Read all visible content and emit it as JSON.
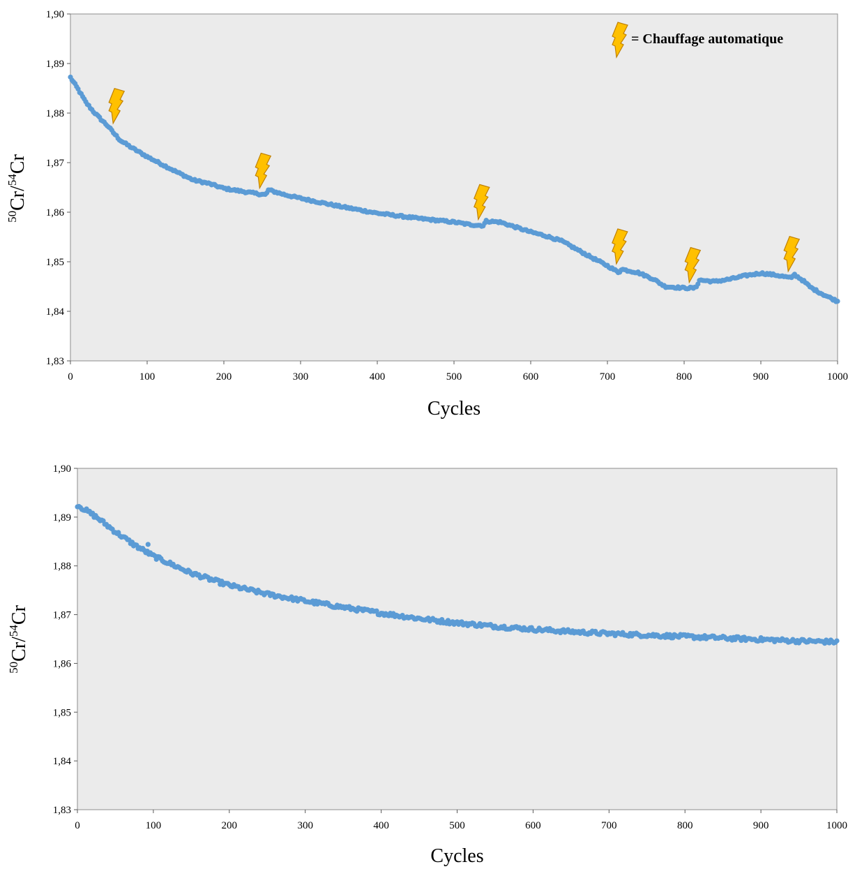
{
  "colors": {
    "plot_background": "#ebebeb",
    "marker": "#5b9bd5",
    "bolt_fill": "#ffc000",
    "bolt_stroke": "#c08000"
  },
  "legend": {
    "icon": "lightning-bolt-icon",
    "text": "= Chauffage automatique"
  },
  "chart_data": [
    {
      "type": "scatter",
      "xlabel": "Cycles",
      "ylabel": "50Cr/54Cr",
      "ylabel_parts": [
        "50",
        "Cr/",
        "54",
        "Cr"
      ],
      "xlim": [
        0,
        1000
      ],
      "ylim": [
        1.83,
        1.9
      ],
      "xticks": [
        0,
        100,
        200,
        300,
        400,
        500,
        600,
        700,
        800,
        900,
        1000
      ],
      "yticks": [
        "1,83",
        "1,84",
        "1,85",
        "1,86",
        "1,87",
        "1,88",
        "1,89",
        "1,90"
      ],
      "grid": false,
      "marker_spacing": 2,
      "noise": 0.0002,
      "series_points": [
        [
          0,
          1.8872
        ],
        [
          10,
          1.8848
        ],
        [
          20,
          1.8822
        ],
        [
          30,
          1.8803
        ],
        [
          40,
          1.8787
        ],
        [
          50,
          1.8772
        ],
        [
          55,
          1.8762
        ],
        [
          65,
          1.8745
        ],
        [
          80,
          1.873
        ],
        [
          100,
          1.8712
        ],
        [
          120,
          1.8696
        ],
        [
          140,
          1.868
        ],
        [
          160,
          1.8665
        ],
        [
          180,
          1.8658
        ],
        [
          200,
          1.8648
        ],
        [
          220,
          1.8643
        ],
        [
          240,
          1.8638
        ],
        [
          255,
          1.8635
        ],
        [
          258,
          1.8645
        ],
        [
          280,
          1.8635
        ],
        [
          300,
          1.8628
        ],
        [
          350,
          1.8612
        ],
        [
          400,
          1.8598
        ],
        [
          450,
          1.8588
        ],
        [
          500,
          1.858
        ],
        [
          520,
          1.8575
        ],
        [
          538,
          1.8573
        ],
        [
          542,
          1.8582
        ],
        [
          560,
          1.858
        ],
        [
          580,
          1.857
        ],
        [
          600,
          1.856
        ],
        [
          620,
          1.8552
        ],
        [
          640,
          1.8542
        ],
        [
          660,
          1.8525
        ],
        [
          680,
          1.8508
        ],
        [
          700,
          1.8492
        ],
        [
          715,
          1.8478
        ],
        [
          718,
          1.8485
        ],
        [
          740,
          1.8478
        ],
        [
          760,
          1.8465
        ],
        [
          775,
          1.845
        ],
        [
          800,
          1.8447
        ],
        [
          815,
          1.8447
        ],
        [
          820,
          1.8463
        ],
        [
          840,
          1.846
        ],
        [
          860,
          1.8465
        ],
        [
          880,
          1.8472
        ],
        [
          900,
          1.8477
        ],
        [
          920,
          1.8473
        ],
        [
          940,
          1.8467
        ],
        [
          943,
          1.8475
        ],
        [
          955,
          1.8462
        ],
        [
          965,
          1.8448
        ],
        [
          980,
          1.8435
        ],
        [
          1000,
          1.842
        ]
      ],
      "outliers": [],
      "heating_events": [
        52,
        243,
        528,
        708,
        803,
        932
      ]
    },
    {
      "type": "scatter",
      "xlabel": "Cycles",
      "ylabel": "50Cr/54Cr",
      "ylabel_parts": [
        "50",
        "Cr/",
        "54",
        "Cr"
      ],
      "xlim": [
        0,
        1000
      ],
      "ylim": [
        1.83,
        1.9
      ],
      "xticks": [
        0,
        100,
        200,
        300,
        400,
        500,
        600,
        700,
        800,
        900,
        1000
      ],
      "yticks": [
        "1,83",
        "1,84",
        "1,85",
        "1,86",
        "1,87",
        "1,88",
        "1,89",
        "1,90"
      ],
      "grid": false,
      "marker_spacing": 2,
      "noise": 0.0004,
      "series_points": [
        [
          0,
          1.8925
        ],
        [
          25,
          1.89
        ],
        [
          50,
          1.887
        ],
        [
          75,
          1.8843
        ],
        [
          100,
          1.882
        ],
        [
          150,
          1.8785
        ],
        [
          200,
          1.876
        ],
        [
          250,
          1.8742
        ],
        [
          300,
          1.8728
        ],
        [
          350,
          1.8715
        ],
        [
          400,
          1.8703
        ],
        [
          450,
          1.8692
        ],
        [
          500,
          1.8683
        ],
        [
          550,
          1.8676
        ],
        [
          600,
          1.867
        ],
        [
          650,
          1.8665
        ],
        [
          700,
          1.8661
        ],
        [
          750,
          1.8658
        ],
        [
          800,
          1.8655
        ],
        [
          850,
          1.8652
        ],
        [
          900,
          1.8649
        ],
        [
          950,
          1.8646
        ],
        [
          1000,
          1.8644
        ]
      ],
      "outliers": [
        [
          93,
          1.8844
        ]
      ],
      "heating_events": []
    }
  ]
}
